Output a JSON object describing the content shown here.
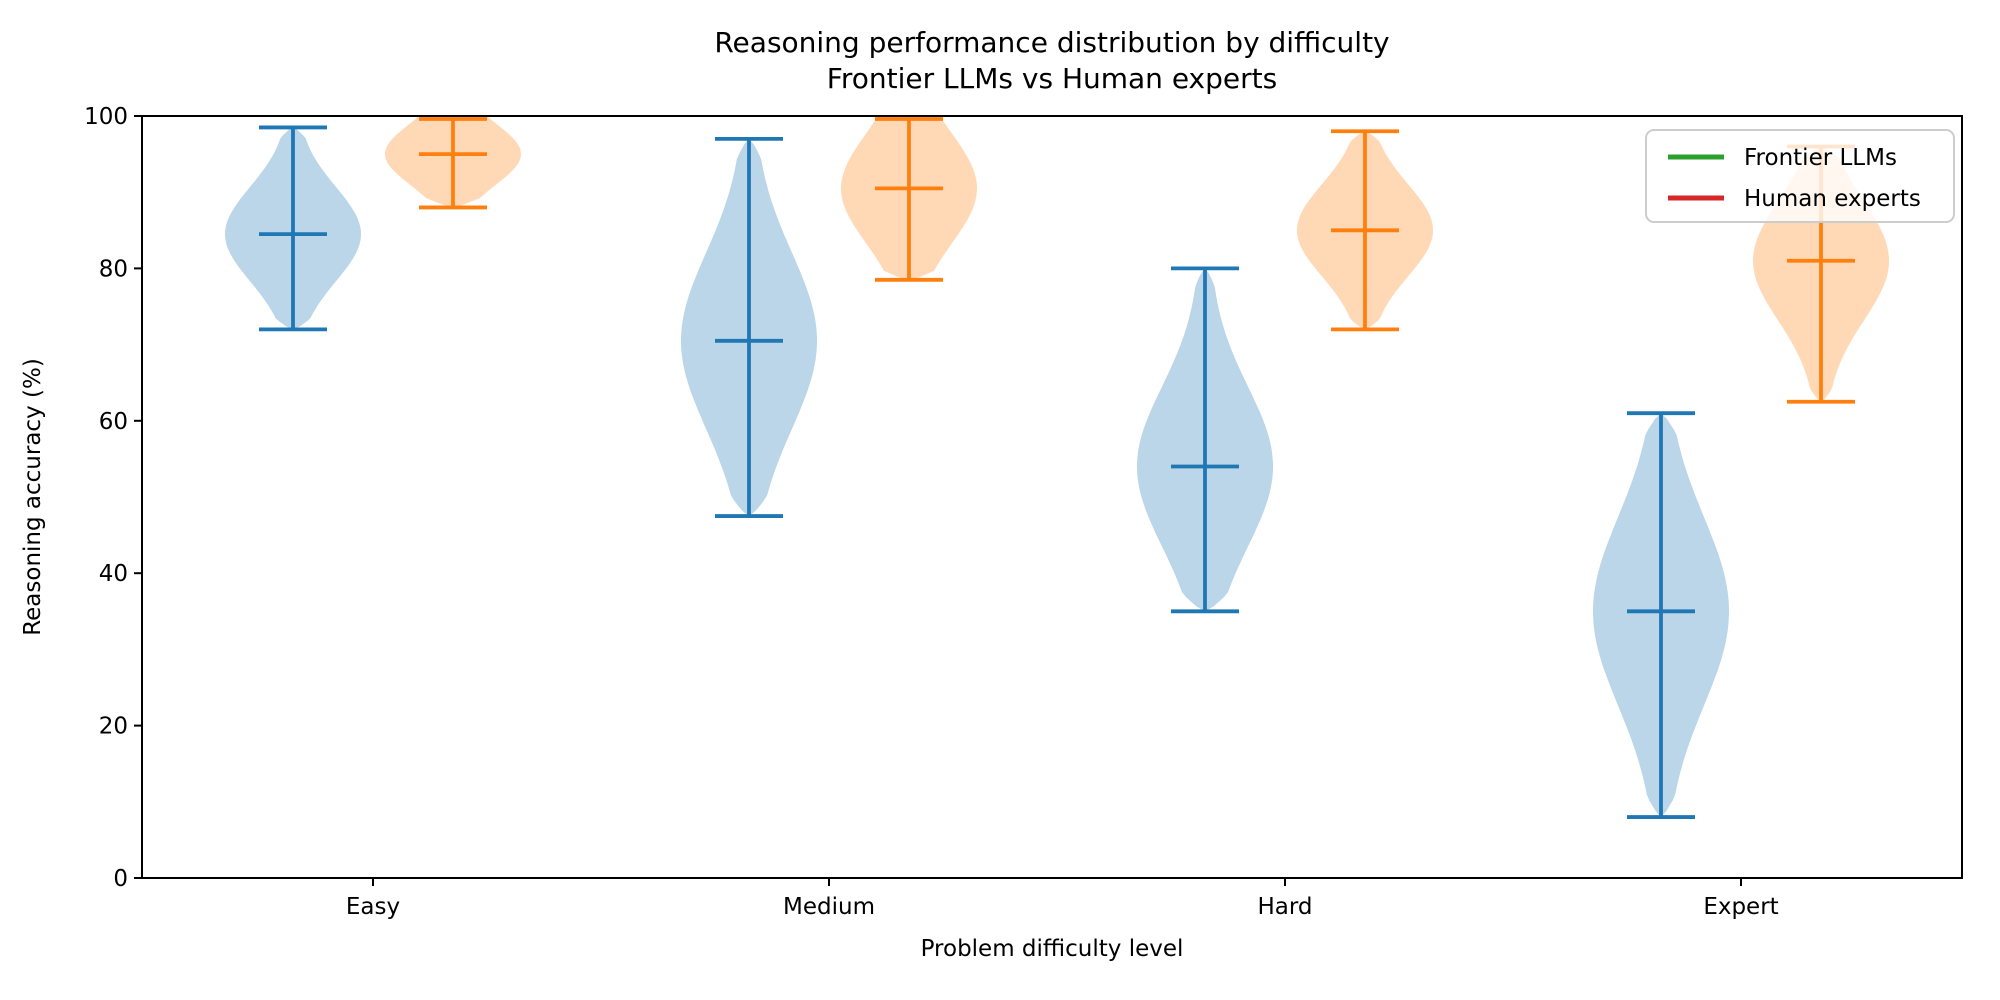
{
  "figure": {
    "title": "Reasoning performance distribution by difficulty",
    "subtitle": "Frontier LLMs vs Human experts"
  },
  "chart_data": {
    "type": "violin",
    "title": "Reasoning performance distribution by difficulty",
    "subtitle": "Frontier LLMs vs Human experts",
    "xlabel": "Problem difficulty level",
    "ylabel": "Reasoning accuracy (%)",
    "categories": [
      "Easy",
      "Medium",
      "Hard",
      "Expert"
    ],
    "ylim": [
      0,
      100
    ],
    "yticks": [
      0,
      20,
      40,
      60,
      80,
      100
    ],
    "grid": false,
    "legend_position": "upper right",
    "legend": [
      {
        "label": "Frontier LLMs",
        "line_color": "#2ca02c"
      },
      {
        "label": "Human experts",
        "line_color": "#d62728"
      }
    ],
    "series": [
      {
        "name": "Frontier LLMs",
        "violin_color": "#1f77b4",
        "stats": [
          {
            "category": "Easy",
            "min": 72,
            "median": 84.5,
            "max": 98.5
          },
          {
            "category": "Medium",
            "min": 47.5,
            "median": 70.5,
            "max": 97
          },
          {
            "category": "Hard",
            "min": 35,
            "median": 54,
            "max": 80
          },
          {
            "category": "Expert",
            "min": 8,
            "median": 35,
            "max": 61
          }
        ]
      },
      {
        "name": "Human experts",
        "violin_color": "#ff7f0e",
        "stats": [
          {
            "category": "Easy",
            "min": 88,
            "median": 95,
            "max": 100
          },
          {
            "category": "Medium",
            "min": 78.5,
            "median": 90.5,
            "max": 100
          },
          {
            "category": "Hard",
            "min": 72,
            "median": 85,
            "max": 98
          },
          {
            "category": "Expert",
            "min": 62.5,
            "median": 81,
            "max": 96
          }
        ]
      }
    ]
  }
}
